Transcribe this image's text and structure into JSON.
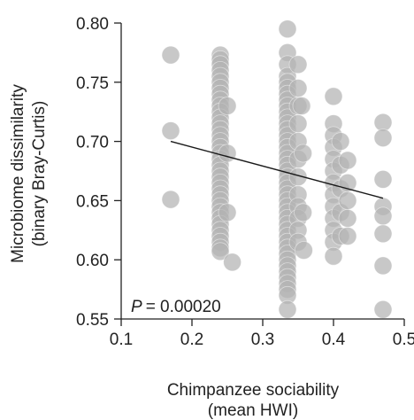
{
  "chart_data": {
    "type": "scatter",
    "title": "",
    "xlabel_line1": "Chimpanzee sociability",
    "xlabel_line2": "(mean HWI)",
    "ylabel_line1": "Microbiome dissimilarity",
    "ylabel_line2": "(binary Bray-Curtis)",
    "xlim": [
      0.1,
      0.5
    ],
    "ylim": [
      0.55,
      0.8
    ],
    "x_ticks": [
      "0.1",
      "0.2",
      "0.3",
      "0.4",
      "0.5"
    ],
    "y_ticks": [
      "0.55",
      "0.60",
      "0.65",
      "0.70",
      "0.75",
      "0.80"
    ],
    "annotation_prefix": "P",
    "annotation_value": "= 0.00020",
    "point_color": "#b3b3b3",
    "line_color": "#1a1a1a",
    "grid": false,
    "trend_line": {
      "x": [
        0.17,
        0.47
      ],
      "y": [
        0.7,
        0.652
      ]
    },
    "points": [
      [
        0.17,
        0.773
      ],
      [
        0.17,
        0.709
      ],
      [
        0.17,
        0.651
      ],
      [
        0.24,
        0.773
      ],
      [
        0.24,
        0.769
      ],
      [
        0.24,
        0.765
      ],
      [
        0.24,
        0.76
      ],
      [
        0.24,
        0.755
      ],
      [
        0.24,
        0.75
      ],
      [
        0.24,
        0.745
      ],
      [
        0.24,
        0.74
      ],
      [
        0.24,
        0.735
      ],
      [
        0.24,
        0.73
      ],
      [
        0.24,
        0.725
      ],
      [
        0.24,
        0.72
      ],
      [
        0.24,
        0.715
      ],
      [
        0.24,
        0.71
      ],
      [
        0.24,
        0.705
      ],
      [
        0.24,
        0.7
      ],
      [
        0.24,
        0.695
      ],
      [
        0.24,
        0.69
      ],
      [
        0.24,
        0.685
      ],
      [
        0.24,
        0.68
      ],
      [
        0.24,
        0.675
      ],
      [
        0.24,
        0.67
      ],
      [
        0.24,
        0.665
      ],
      [
        0.24,
        0.66
      ],
      [
        0.24,
        0.655
      ],
      [
        0.24,
        0.65
      ],
      [
        0.24,
        0.645
      ],
      [
        0.24,
        0.64
      ],
      [
        0.24,
        0.635
      ],
      [
        0.24,
        0.63
      ],
      [
        0.24,
        0.625
      ],
      [
        0.24,
        0.62
      ],
      [
        0.24,
        0.615
      ],
      [
        0.24,
        0.61
      ],
      [
        0.24,
        0.607
      ],
      [
        0.25,
        0.73
      ],
      [
        0.25,
        0.69
      ],
      [
        0.25,
        0.64
      ],
      [
        0.257,
        0.598
      ],
      [
        0.335,
        0.795
      ],
      [
        0.335,
        0.775
      ],
      [
        0.335,
        0.765
      ],
      [
        0.335,
        0.755
      ],
      [
        0.335,
        0.75
      ],
      [
        0.335,
        0.745
      ],
      [
        0.335,
        0.74
      ],
      [
        0.335,
        0.735
      ],
      [
        0.335,
        0.73
      ],
      [
        0.335,
        0.725
      ],
      [
        0.335,
        0.72
      ],
      [
        0.335,
        0.715
      ],
      [
        0.335,
        0.71
      ],
      [
        0.335,
        0.705
      ],
      [
        0.335,
        0.7
      ],
      [
        0.335,
        0.695
      ],
      [
        0.335,
        0.69
      ],
      [
        0.335,
        0.685
      ],
      [
        0.335,
        0.68
      ],
      [
        0.335,
        0.675
      ],
      [
        0.335,
        0.67
      ],
      [
        0.335,
        0.665
      ],
      [
        0.335,
        0.66
      ],
      [
        0.335,
        0.655
      ],
      [
        0.335,
        0.65
      ],
      [
        0.335,
        0.645
      ],
      [
        0.335,
        0.64
      ],
      [
        0.335,
        0.635
      ],
      [
        0.335,
        0.63
      ],
      [
        0.335,
        0.625
      ],
      [
        0.335,
        0.62
      ],
      [
        0.335,
        0.615
      ],
      [
        0.335,
        0.61
      ],
      [
        0.335,
        0.605
      ],
      [
        0.335,
        0.6
      ],
      [
        0.335,
        0.595
      ],
      [
        0.335,
        0.59
      ],
      [
        0.335,
        0.585
      ],
      [
        0.335,
        0.58
      ],
      [
        0.335,
        0.575
      ],
      [
        0.335,
        0.57
      ],
      [
        0.335,
        0.558
      ],
      [
        0.35,
        0.765
      ],
      [
        0.35,
        0.745
      ],
      [
        0.35,
        0.73
      ],
      [
        0.35,
        0.715
      ],
      [
        0.35,
        0.7
      ],
      [
        0.35,
        0.685
      ],
      [
        0.35,
        0.67
      ],
      [
        0.35,
        0.655
      ],
      [
        0.35,
        0.645
      ],
      [
        0.35,
        0.635
      ],
      [
        0.35,
        0.625
      ],
      [
        0.35,
        0.615
      ],
      [
        0.355,
        0.73
      ],
      [
        0.357,
        0.69
      ],
      [
        0.357,
        0.64
      ],
      [
        0.358,
        0.608
      ],
      [
        0.4,
        0.738
      ],
      [
        0.4,
        0.715
      ],
      [
        0.4,
        0.705
      ],
      [
        0.4,
        0.695
      ],
      [
        0.4,
        0.685
      ],
      [
        0.4,
        0.675
      ],
      [
        0.4,
        0.665
      ],
      [
        0.4,
        0.655
      ],
      [
        0.4,
        0.645
      ],
      [
        0.4,
        0.635
      ],
      [
        0.4,
        0.625
      ],
      [
        0.4,
        0.615
      ],
      [
        0.4,
        0.603
      ],
      [
        0.41,
        0.7
      ],
      [
        0.41,
        0.68
      ],
      [
        0.41,
        0.66
      ],
      [
        0.41,
        0.64
      ],
      [
        0.41,
        0.62
      ],
      [
        0.42,
        0.684
      ],
      [
        0.42,
        0.665
      ],
      [
        0.42,
        0.65
      ],
      [
        0.42,
        0.635
      ],
      [
        0.42,
        0.62
      ],
      [
        0.47,
        0.716
      ],
      [
        0.47,
        0.703
      ],
      [
        0.47,
        0.668
      ],
      [
        0.47,
        0.645
      ],
      [
        0.47,
        0.637
      ],
      [
        0.47,
        0.622
      ],
      [
        0.47,
        0.595
      ],
      [
        0.47,
        0.558
      ]
    ]
  }
}
